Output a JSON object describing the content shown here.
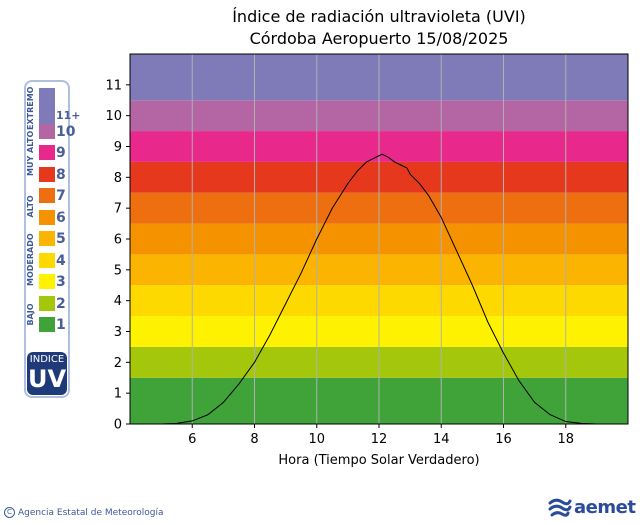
{
  "chart_data": {
    "type": "line",
    "title_line1": "Índice de radiación ultravioleta (UVI)",
    "title_line2": "Córdoba Aeropuerto 15/08/2025",
    "xlabel": "Hora (Tiempo Solar Verdadero)",
    "ylabel": "",
    "xlim": [
      4,
      20
    ],
    "ylim": [
      0,
      12
    ],
    "xticks": [
      6,
      8,
      10,
      12,
      14,
      16,
      18
    ],
    "yticks": [
      0,
      1,
      2,
      3,
      4,
      5,
      6,
      7,
      8,
      9,
      10,
      11
    ],
    "grid": "vertical",
    "background_bands": [
      {
        "from": 0,
        "to": 1.5,
        "color": "#3fa33a"
      },
      {
        "from": 1.5,
        "to": 2.5,
        "color": "#a4c60b"
      },
      {
        "from": 2.5,
        "to": 3.5,
        "color": "#fff200"
      },
      {
        "from": 3.5,
        "to": 4.5,
        "color": "#fdd900"
      },
      {
        "from": 4.5,
        "to": 5.5,
        "color": "#fbb400"
      },
      {
        "from": 5.5,
        "to": 6.5,
        "color": "#f59200"
      },
      {
        "from": 6.5,
        "to": 7.5,
        "color": "#ee6f10"
      },
      {
        "from": 7.5,
        "to": 8.5,
        "color": "#e5381d"
      },
      {
        "from": 8.5,
        "to": 9.5,
        "color": "#e8288a"
      },
      {
        "from": 9.5,
        "to": 10.5,
        "color": "#b466a4"
      },
      {
        "from": 10.5,
        "to": 12,
        "color": "#7e7bb8"
      }
    ],
    "series": [
      {
        "color": "#000000",
        "x": [
          4.0,
          5.0,
          5.5,
          6.0,
          6.5,
          7.0,
          7.5,
          8.0,
          8.5,
          9.0,
          9.5,
          10.0,
          10.5,
          11.0,
          11.3,
          11.6,
          11.8,
          12.0,
          12.1,
          12.3,
          12.5,
          12.7,
          12.9,
          13.0,
          13.3,
          13.6,
          14.0,
          14.5,
          15.0,
          15.5,
          16.0,
          16.5,
          17.0,
          17.5,
          18.0,
          18.5,
          19.0,
          20.0
        ],
        "y": [
          0.0,
          0.0,
          0.02,
          0.1,
          0.3,
          0.7,
          1.3,
          2.0,
          2.9,
          3.9,
          4.9,
          6.0,
          7.0,
          7.8,
          8.2,
          8.5,
          8.6,
          8.7,
          8.75,
          8.65,
          8.5,
          8.4,
          8.3,
          8.1,
          7.8,
          7.4,
          6.7,
          5.6,
          4.5,
          3.3,
          2.3,
          1.4,
          0.7,
          0.3,
          0.08,
          0.02,
          0.0,
          0.0
        ]
      }
    ]
  },
  "legend": {
    "categories": [
      {
        "label": "EXTREMO",
        "span": [
          11,
          11
        ]
      },
      {
        "label": "MUY ALTO",
        "span": [
          8,
          10
        ]
      },
      {
        "label": "ALTO",
        "span": [
          6,
          7
        ]
      },
      {
        "label": "MODERADO",
        "span": [
          3,
          5
        ]
      },
      {
        "label": "BAJO",
        "span": [
          1,
          2
        ]
      }
    ],
    "levels": [
      {
        "num": "11+",
        "color": "#7e7bb8"
      },
      {
        "num": "10",
        "color": "#b466a4"
      },
      {
        "num": "9",
        "color": "#e8288a"
      },
      {
        "num": "8",
        "color": "#e5381d"
      },
      {
        "num": "7",
        "color": "#ee6f10"
      },
      {
        "num": "6",
        "color": "#f59200"
      },
      {
        "num": "5",
        "color": "#fbb400"
      },
      {
        "num": "4",
        "color": "#fdd900"
      },
      {
        "num": "3",
        "color": "#fff200"
      },
      {
        "num": "2",
        "color": "#a4c60b"
      },
      {
        "num": "1",
        "color": "#3fa33a"
      }
    ],
    "badge_top": "INDICE",
    "badge_bottom": "UV"
  },
  "footer": {
    "copyright_symbol": "C",
    "agency": "Agencia Estatal de Meteorología",
    "logo": "aemet",
    "logo_icon": "aemet-swirl-icon"
  }
}
